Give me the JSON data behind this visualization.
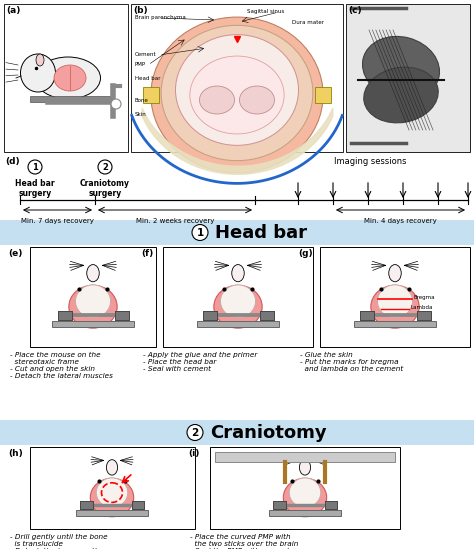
{
  "fig_width": 4.74,
  "fig_height": 5.49,
  "dpi": 100,
  "bg_color": "#ffffff",
  "section_blue": "#c5e0f0",
  "panel_e_text": "- Place the mouse on the\n  stereotaxic frame\n- Cut and open the skin\n- Detach the lateral muscles",
  "panel_f_text": "- Apply the glue and the primer\n- Place the head bar\n- Seal with cement",
  "panel_g_text": "- Glue the skin\n- Put the marks for bregma\n  and lambda on the cement",
  "panel_h_text": "- Drill gently until the bone\n  is translucide\n- Detach the bone gently\n  with forceps",
  "panel_i_text": "- Place the curved PMP with\n  the two sticks over the brain\n- Seal the PMP with cement",
  "section1_title": "Head bar",
  "section2_title": "Craniotomy",
  "rec1": "Min. 7 days recovery",
  "rec2": "Min. 2 weeks recovery",
  "rec3": "Min. 4 days recovery"
}
